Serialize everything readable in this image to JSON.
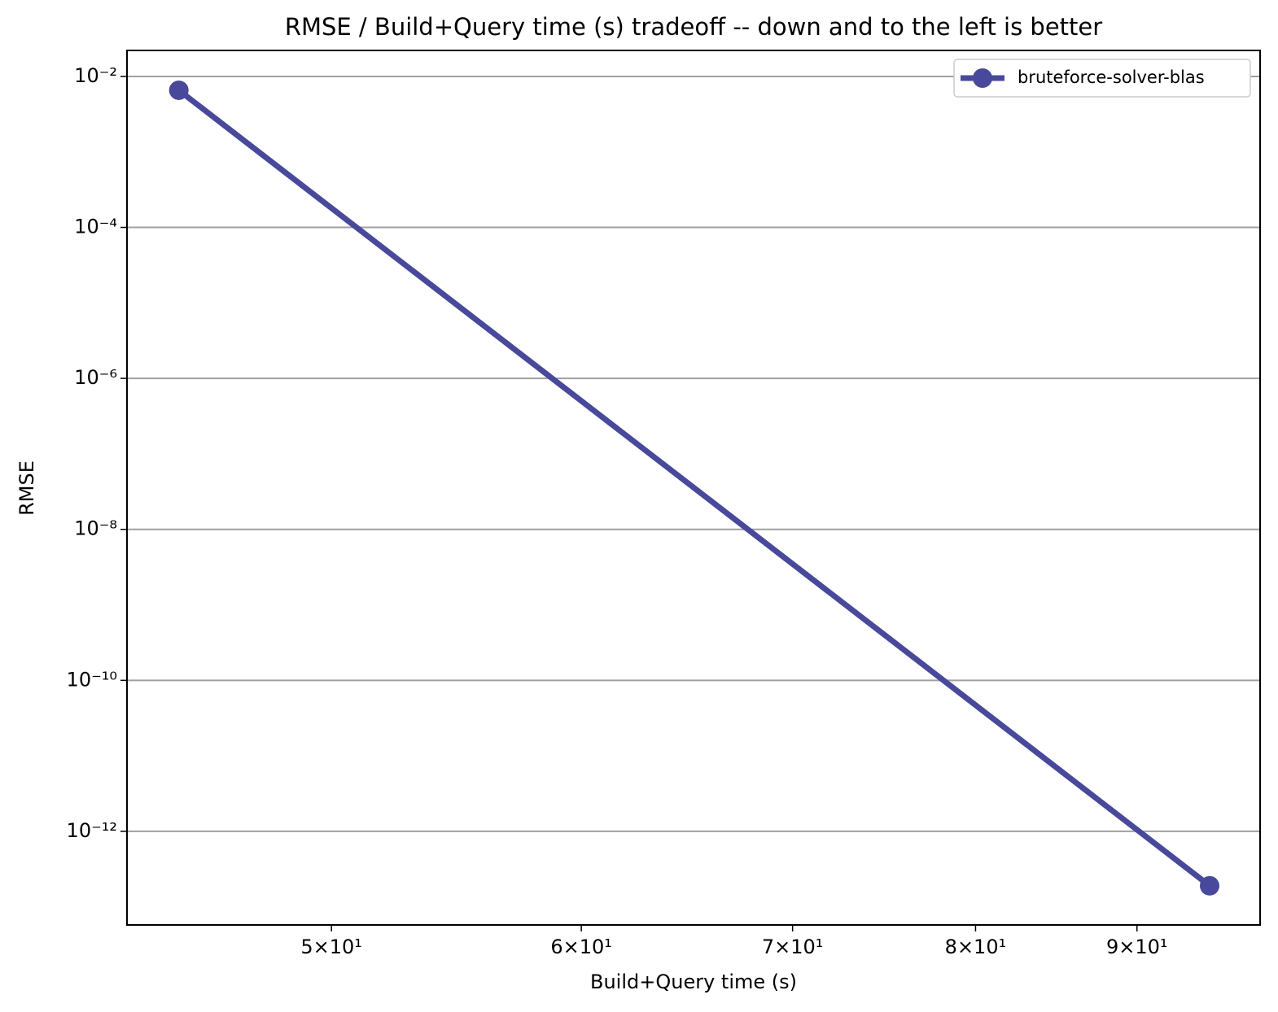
{
  "chart_data": {
    "type": "line",
    "title": "RMSE / Build+Query time (s) tradeoff -- down and to the left is better",
    "x_label": "Build+Query time (s)",
    "y_label": "RMSE",
    "x": [
      44.73,
      94.9
    ],
    "series": [
      {
        "name": "bruteforce-solver-blas",
        "color": "#48499a",
        "values": [
          0.00656,
          1.9e-13
        ]
      }
    ],
    "xscale": "log",
    "yscale": "log",
    "xlim": [
      43.07,
      98.46
    ],
    "ylim": [
      5.75e-14,
      0.0221
    ],
    "xticks": [
      {
        "value": 50,
        "label": "5×10¹"
      },
      {
        "value": 60,
        "label": "6×10¹"
      },
      {
        "value": 70,
        "label": "7×10¹"
      },
      {
        "value": 80,
        "label": "8×10¹"
      },
      {
        "value": 90,
        "label": "9×10¹"
      }
    ],
    "yticks": [
      {
        "value": 1e-12,
        "label": "10⁻¹²"
      },
      {
        "value": 1e-10,
        "label": "10⁻¹⁰"
      },
      {
        "value": 1e-08,
        "label": "10⁻⁸"
      },
      {
        "value": 1e-06,
        "label": "10⁻⁶"
      },
      {
        "value": 0.0001,
        "label": "10⁻⁴"
      },
      {
        "value": 0.01,
        "label": "10⁻²"
      }
    ],
    "grid": "y",
    "legend": "upper right"
  }
}
